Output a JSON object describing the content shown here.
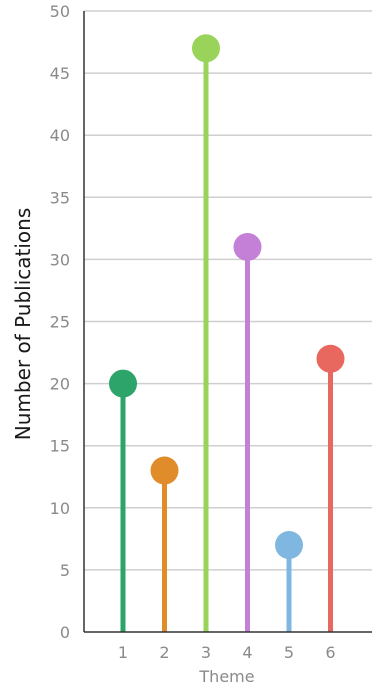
{
  "chart_data": {
    "type": "lollipop",
    "xlabel": "Theme",
    "ylabel": "Number of Publications",
    "categories": [
      "1",
      "2",
      "3",
      "4",
      "5",
      "6"
    ],
    "values": [
      20,
      13,
      47,
      31,
      7,
      22
    ],
    "colors": [
      "#2ca46a",
      "#e08c2a",
      "#99d35a",
      "#c47fd6",
      "#7fb7e0",
      "#e8675e"
    ],
    "ylim": [
      0,
      50
    ],
    "yticks": [
      0,
      5,
      10,
      15,
      20,
      25,
      30,
      35,
      40,
      45,
      50
    ],
    "grid": true,
    "grid_color": "#cfcfcf",
    "axis_color": "#333333"
  }
}
